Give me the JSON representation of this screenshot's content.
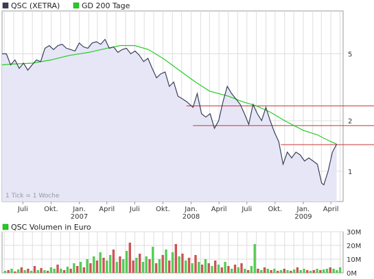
{
  "chart_data": [
    {
      "type": "line",
      "legend": [
        {
          "label": "QSC (XETRA)",
          "color": "#3a3f58"
        },
        {
          "label": "GD 200 Tage",
          "color": "#22cc22"
        }
      ],
      "note": "1 Tick = 1 Woche",
      "y_scale": "log",
      "ylim": [
        0.66,
        9.0
      ],
      "y_ticks": [
        {
          "value": 1,
          "label": "1"
        },
        {
          "value": 2,
          "label": "2"
        },
        {
          "value": 5,
          "label": "5"
        }
      ],
      "x_start": "2006-04-24",
      "x_end": "2009-05-11",
      "x_ticks": [
        {
          "date": "2006-07-01",
          "label": "Juli"
        },
        {
          "date": "2006-10-01",
          "label": "Okt."
        },
        {
          "date": "2007-01-01",
          "label": "Jan.",
          "year": "2007"
        },
        {
          "date": "2007-04-01",
          "label": "April"
        },
        {
          "date": "2007-07-01",
          "label": "Juli"
        },
        {
          "date": "2007-10-01",
          "label": "Okt."
        },
        {
          "date": "2008-01-01",
          "label": "Jan.",
          "year": "2008"
        },
        {
          "date": "2008-04-01",
          "label": "April"
        },
        {
          "date": "2008-07-01",
          "label": "Juli"
        },
        {
          "date": "2008-10-01",
          "label": "Okt."
        },
        {
          "date": "2009-01-01",
          "label": "Jan.",
          "year": "2009"
        },
        {
          "date": "2009-04-01",
          "label": "April"
        }
      ],
      "horizontal_lines": [
        {
          "value": 2.45,
          "from": "2007-12-17",
          "color": "#cc3333"
        },
        {
          "value": 1.87,
          "from": "2008-01-07",
          "color": "#cc3333"
        },
        {
          "value": 1.44,
          "from": "2008-10-20",
          "color": "#cc3333"
        }
      ],
      "series": [
        {
          "name": "QSC (XETRA)",
          "color": "#3a3f58",
          "points": [
            [
              "2006-04-24",
              5.0
            ],
            [
              "2006-05-08",
              5.0
            ],
            [
              "2006-05-22",
              4.3
            ],
            [
              "2006-06-05",
              4.6
            ],
            [
              "2006-06-19",
              4.1
            ],
            [
              "2006-07-03",
              4.4
            ],
            [
              "2006-07-17",
              4.0
            ],
            [
              "2006-07-31",
              4.3
            ],
            [
              "2006-08-14",
              4.6
            ],
            [
              "2006-08-28",
              4.5
            ],
            [
              "2006-09-11",
              5.4
            ],
            [
              "2006-09-25",
              5.6
            ],
            [
              "2006-10-09",
              5.3
            ],
            [
              "2006-10-23",
              5.6
            ],
            [
              "2006-11-06",
              5.7
            ],
            [
              "2006-11-20",
              5.4
            ],
            [
              "2006-12-04",
              5.3
            ],
            [
              "2006-12-18",
              5.2
            ],
            [
              "2007-01-01",
              5.8
            ],
            [
              "2007-01-15",
              5.5
            ],
            [
              "2007-01-29",
              5.4
            ],
            [
              "2007-02-12",
              5.8
            ],
            [
              "2007-02-26",
              5.9
            ],
            [
              "2007-03-12",
              5.7
            ],
            [
              "2007-03-26",
              6.1
            ],
            [
              "2007-04-09",
              5.4
            ],
            [
              "2007-04-23",
              5.5
            ],
            [
              "2007-05-07",
              5.1
            ],
            [
              "2007-05-21",
              5.3
            ],
            [
              "2007-06-04",
              5.4
            ],
            [
              "2007-06-18",
              5.0
            ],
            [
              "2007-07-02",
              5.2
            ],
            [
              "2007-07-16",
              4.9
            ],
            [
              "2007-07-30",
              4.5
            ],
            [
              "2007-08-13",
              4.7
            ],
            [
              "2007-08-27",
              4.1
            ],
            [
              "2007-09-10",
              3.6
            ],
            [
              "2007-09-24",
              3.8
            ],
            [
              "2007-10-08",
              3.9
            ],
            [
              "2007-10-22",
              3.2
            ],
            [
              "2007-11-05",
              3.4
            ],
            [
              "2007-11-19",
              2.8
            ],
            [
              "2007-12-03",
              2.7
            ],
            [
              "2007-12-17",
              2.6
            ],
            [
              "2008-01-07",
              2.4
            ],
            [
              "2008-01-21",
              2.9
            ],
            [
              "2008-02-04",
              2.2
            ],
            [
              "2008-02-18",
              2.1
            ],
            [
              "2008-03-03",
              2.2
            ],
            [
              "2008-03-17",
              1.8
            ],
            [
              "2008-03-31",
              2.0
            ],
            [
              "2008-04-14",
              2.6
            ],
            [
              "2008-04-28",
              3.2
            ],
            [
              "2008-05-12",
              2.9
            ],
            [
              "2008-05-26",
              2.7
            ],
            [
              "2008-06-09",
              2.5
            ],
            [
              "2008-06-23",
              2.2
            ],
            [
              "2008-07-07",
              1.9
            ],
            [
              "2008-07-21",
              2.5
            ],
            [
              "2008-08-04",
              2.2
            ],
            [
              "2008-08-18",
              2.0
            ],
            [
              "2008-09-01",
              2.4
            ],
            [
              "2008-09-15",
              2.0
            ],
            [
              "2008-09-29",
              1.7
            ],
            [
              "2008-10-13",
              1.5
            ],
            [
              "2008-10-27",
              1.1
            ],
            [
              "2008-11-10",
              1.3
            ],
            [
              "2008-11-24",
              1.2
            ],
            [
              "2008-12-08",
              1.3
            ],
            [
              "2008-12-22",
              1.25
            ],
            [
              "2009-01-05",
              1.15
            ],
            [
              "2009-01-19",
              1.2
            ],
            [
              "2009-02-02",
              1.15
            ],
            [
              "2009-02-16",
              1.1
            ],
            [
              "2009-03-02",
              0.85
            ],
            [
              "2009-03-09",
              0.83
            ],
            [
              "2009-03-23",
              1.0
            ],
            [
              "2009-04-06",
              1.3
            ],
            [
              "2009-04-20",
              1.45
            ]
          ]
        },
        {
          "name": "GD 200 Tage",
          "color": "#22cc22",
          "points": [
            [
              "2006-04-24",
              4.3
            ],
            [
              "2006-06-01",
              4.35
            ],
            [
              "2006-08-01",
              4.4
            ],
            [
              "2006-10-01",
              4.6
            ],
            [
              "2006-12-01",
              4.9
            ],
            [
              "2007-02-01",
              5.1
            ],
            [
              "2007-04-01",
              5.4
            ],
            [
              "2007-05-15",
              5.6
            ],
            [
              "2007-07-01",
              5.6
            ],
            [
              "2007-08-15",
              5.3
            ],
            [
              "2007-10-01",
              4.7
            ],
            [
              "2007-12-01",
              3.9
            ],
            [
              "2008-01-15",
              3.4
            ],
            [
              "2008-03-01",
              3.0
            ],
            [
              "2008-05-01",
              2.8
            ],
            [
              "2008-06-15",
              2.6
            ],
            [
              "2008-08-01",
              2.45
            ],
            [
              "2008-09-15",
              2.25
            ],
            [
              "2008-11-01",
              2.0
            ],
            [
              "2009-01-01",
              1.75
            ],
            [
              "2009-02-15",
              1.65
            ],
            [
              "2009-04-01",
              1.5
            ],
            [
              "2009-04-20",
              1.45
            ]
          ]
        }
      ]
    },
    {
      "type": "bar",
      "legend": [
        {
          "label": "QSC Volumen in Euro",
          "color": "#22cc22"
        }
      ],
      "ylim": [
        0,
        30
      ],
      "y_ticks": [
        {
          "value": 10,
          "label": "10M"
        },
        {
          "value": 20,
          "label": "20M"
        },
        {
          "value": 30,
          "label": "30M"
        },
        {
          "value": 0,
          "label": "0M"
        }
      ],
      "colors": {
        "up": "#55cc55",
        "down": "#cc5555"
      },
      "values": [
        [
          1.5,
          "g"
        ],
        [
          2,
          "r"
        ],
        [
          3,
          "g"
        ],
        [
          1,
          "r"
        ],
        [
          2.5,
          "g"
        ],
        [
          4,
          "r"
        ],
        [
          2,
          "g"
        ],
        [
          3,
          "r"
        ],
        [
          1.5,
          "g"
        ],
        [
          5,
          "r"
        ],
        [
          2,
          "g"
        ],
        [
          3.5,
          "r"
        ],
        [
          2,
          "g"
        ],
        [
          1.5,
          "r"
        ],
        [
          4,
          "g"
        ],
        [
          3,
          "g"
        ],
        [
          6,
          "r"
        ],
        [
          3,
          "g"
        ],
        [
          2,
          "r"
        ],
        [
          4.5,
          "g"
        ],
        [
          3,
          "r"
        ],
        [
          7,
          "g"
        ],
        [
          5,
          "r"
        ],
        [
          8,
          "g"
        ],
        [
          4,
          "r"
        ],
        [
          10,
          "g"
        ],
        [
          7,
          "r"
        ],
        [
          12,
          "g"
        ],
        [
          9,
          "r"
        ],
        [
          15,
          "g"
        ],
        [
          11,
          "r"
        ],
        [
          9,
          "g"
        ],
        [
          13,
          "g"
        ],
        [
          17,
          "r"
        ],
        [
          8,
          "g"
        ],
        [
          12,
          "r"
        ],
        [
          10,
          "g"
        ],
        [
          16,
          "g"
        ],
        [
          22,
          "r"
        ],
        [
          9,
          "r"
        ],
        [
          11,
          "g"
        ],
        [
          14,
          "r"
        ],
        [
          8,
          "g"
        ],
        [
          12,
          "g"
        ],
        [
          10,
          "r"
        ],
        [
          19,
          "g"
        ],
        [
          7,
          "r"
        ],
        [
          10,
          "g"
        ],
        [
          13,
          "r"
        ],
        [
          17,
          "g"
        ],
        [
          9,
          "r"
        ],
        [
          15,
          "g"
        ],
        [
          21,
          "r"
        ],
        [
          12,
          "g"
        ],
        [
          14,
          "r"
        ],
        [
          9,
          "g"
        ],
        [
          11,
          "r"
        ],
        [
          7,
          "g"
        ],
        [
          13,
          "r"
        ],
        [
          8,
          "g"
        ],
        [
          6,
          "r"
        ],
        [
          10,
          "g"
        ],
        [
          7,
          "r"
        ],
        [
          5,
          "g"
        ],
        [
          9,
          "r"
        ],
        [
          6,
          "g"
        ],
        [
          4,
          "r"
        ],
        [
          8,
          "g"
        ],
        [
          5,
          "r"
        ],
        [
          3,
          "g"
        ],
        [
          6,
          "r"
        ],
        [
          4,
          "g"
        ],
        [
          7,
          "r"
        ],
        [
          3,
          "g"
        ],
        [
          2,
          "r"
        ],
        [
          5,
          "g"
        ],
        [
          21,
          "g"
        ],
        [
          3,
          "r"
        ],
        [
          2,
          "g"
        ],
        [
          4,
          "r"
        ],
        [
          3,
          "g"
        ],
        [
          2,
          "r"
        ],
        [
          3,
          "g"
        ],
        [
          1.5,
          "r"
        ],
        [
          2,
          "g"
        ],
        [
          3,
          "r"
        ],
        [
          2,
          "g"
        ],
        [
          1.5,
          "r"
        ],
        [
          2.5,
          "g"
        ],
        [
          4,
          "r"
        ],
        [
          2,
          "g"
        ],
        [
          3,
          "g"
        ],
        [
          2,
          "r"
        ],
        [
          1.5,
          "g"
        ],
        [
          2,
          "r"
        ],
        [
          3,
          "g"
        ],
        [
          2,
          "r"
        ],
        [
          2.5,
          "g"
        ],
        [
          3,
          "g"
        ],
        [
          4,
          "r"
        ],
        [
          3,
          "g"
        ],
        [
          2,
          "g"
        ],
        [
          4,
          "g"
        ]
      ]
    }
  ]
}
